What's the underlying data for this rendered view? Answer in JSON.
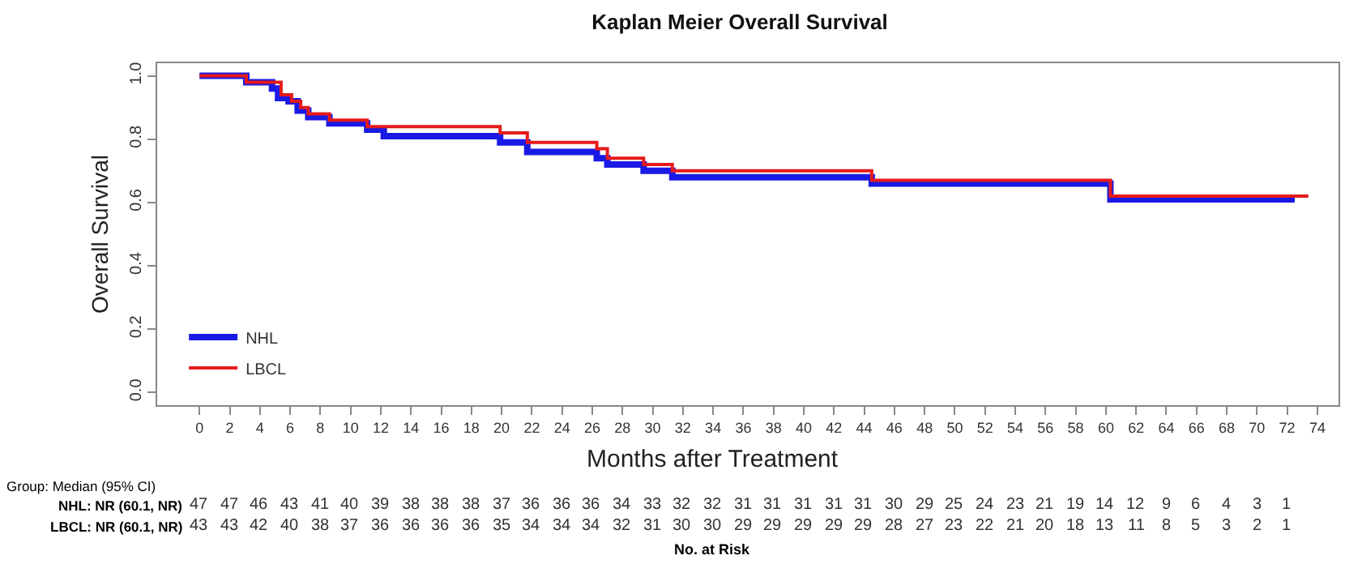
{
  "chart_data": {
    "type": "step",
    "title": "Kaplan Meier Overall Survival",
    "xlabel": "Months after Treatment",
    "ylabel": "Overall Survival",
    "series": [
      {
        "name": "NHL",
        "color": "#1a1ae6",
        "x": [
          0,
          3.1,
          4.8,
          5.2,
          5.9,
          6.5,
          7.2,
          8.6,
          11.1,
          12.2,
          19.9,
          21.7,
          26.3,
          27,
          29.4,
          31.3,
          44.5,
          60.3,
          72.5
        ],
        "values": [
          1,
          0.98,
          0.96,
          0.93,
          0.92,
          0.89,
          0.87,
          0.85,
          0.83,
          0.81,
          0.79,
          0.76,
          0.74,
          0.72,
          0.7,
          0.68,
          0.66,
          0.61,
          0.61
        ]
      },
      {
        "name": "LBCL",
        "color": "#e61a1a",
        "x": [
          0,
          3.1,
          5.4,
          6.1,
          6.7,
          7.2,
          8.6,
          11.1,
          19.9,
          21.7,
          26.3,
          27,
          29.4,
          31.3,
          44.5,
          60.3,
          73.4
        ],
        "values": [
          1,
          0.98,
          0.94,
          0.92,
          0.9,
          0.88,
          0.86,
          0.84,
          0.82,
          0.79,
          0.77,
          0.74,
          0.72,
          0.7,
          0.67,
          0.62,
          0.62
        ]
      }
    ],
    "xlim": [
      -2.8,
      75.4
    ],
    "xticks": [
      0,
      2,
      4,
      6,
      8,
      10,
      12,
      14,
      16,
      18,
      20,
      22,
      24,
      26,
      28,
      30,
      32,
      34,
      36,
      38,
      40,
      42,
      44,
      46,
      48,
      50,
      52,
      54,
      56,
      58,
      60,
      62,
      64,
      66,
      68,
      70,
      72,
      74
    ],
    "ylim": [
      -0.04,
      1.04
    ],
    "yticks": [
      {
        "value": 0,
        "label": "0.0"
      },
      {
        "value": 0.2,
        "label": "0.2"
      },
      {
        "value": 0.4,
        "label": "0.4"
      },
      {
        "value": 0.6,
        "label": "0.6"
      },
      {
        "value": 0.8,
        "label": "0.8"
      },
      {
        "value": 1,
        "label": "1.0"
      }
    ],
    "grid": false,
    "legend": "bottom left",
    "annotations": [
      "Group: Median (95% CI)",
      "NHL: NR (60.1, NR)",
      "LBCL: NR (60.1, NR)",
      "47 47 46 43 41 40 39 38 38 38 37 36 36 36 34 33 32 32 31 31 31 31 31 30 29 25 24 23 21 19 14 12 9 6 4 3 1",
      "43 43 42 40 38 37 36 36 36 36 35 34 34 34 32 31 30 30 29 29 29 29 29 28 27 23 22 21 20 18 13 11 8 5 3 2 1",
      "No. at Risk"
    ]
  }
}
